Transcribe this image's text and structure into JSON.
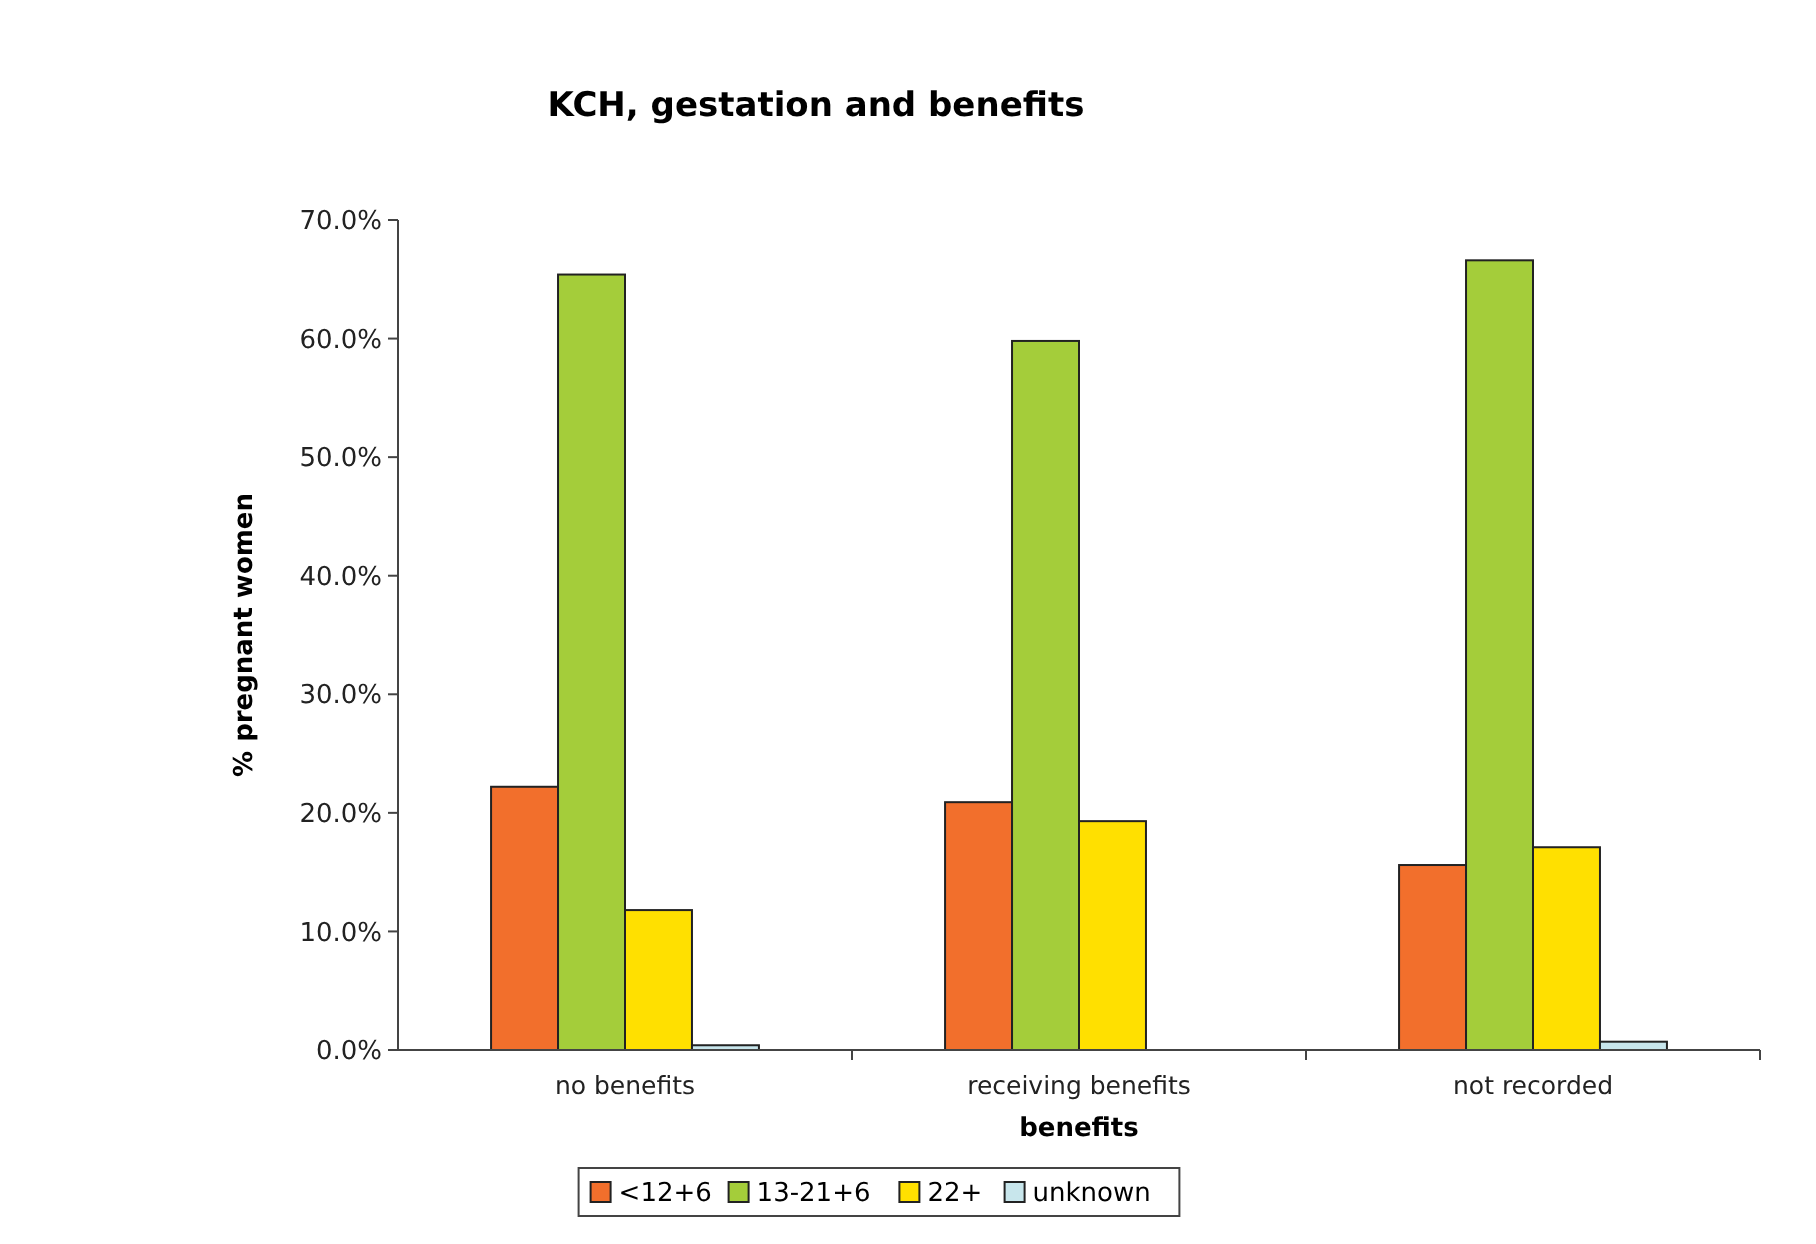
{
  "chart_data": {
    "type": "bar",
    "title": "KCH, gestation and benefits",
    "xlabel": "benefits",
    "ylabel": "% pregnant women",
    "categories": [
      "no benefits",
      "receiving benefits",
      "not recorded"
    ],
    "series": [
      {
        "name": "<12+6",
        "color": "#f26f2c",
        "values": [
          22.2,
          20.9,
          15.6
        ]
      },
      {
        "name": "13-21+6",
        "color": "#a4cd3a",
        "values": [
          65.4,
          59.8,
          66.6
        ]
      },
      {
        "name": "22+",
        "color": "#ffe000",
        "values": [
          11.8,
          19.3,
          17.1
        ]
      },
      {
        "name": "unknown",
        "color": "#c8e6ec",
        "values": [
          0.4,
          0,
          0.7
        ]
      }
    ],
    "ylim": [
      0,
      70
    ],
    "yticks": [
      {
        "value": 0,
        "label": "0.0%"
      },
      {
        "value": 10,
        "label": "10.0%"
      },
      {
        "value": 20,
        "label": "20.0%"
      },
      {
        "value": 30,
        "label": "30.0%"
      },
      {
        "value": 40,
        "label": "40.0%"
      },
      {
        "value": 50,
        "label": "50.0%"
      },
      {
        "value": 60,
        "label": "60.0%"
      },
      {
        "value": 70,
        "label": "70.0%"
      }
    ],
    "legend": "bottom"
  }
}
